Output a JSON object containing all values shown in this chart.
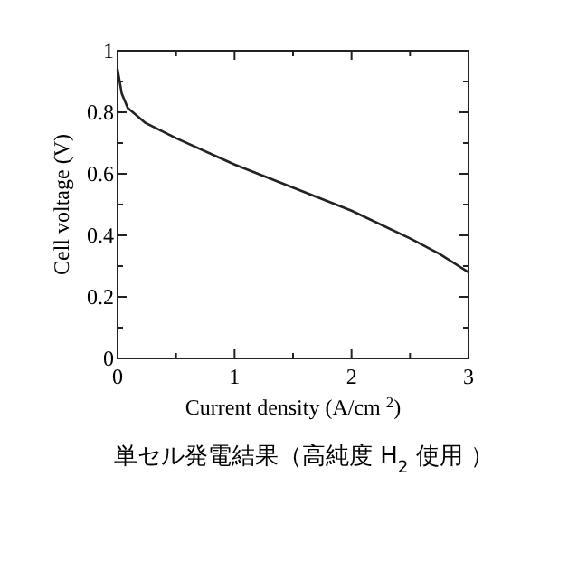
{
  "chart_data": {
    "type": "line",
    "xlabel": "Current density (A/cm $^{2}$)",
    "ylabel": "Cell voltage (V)",
    "annotations": [
      "単セル発電結果（高純度 H$_{2}$ 使用 ）"
    ],
    "x": [
      0,
      0.036,
      0.087,
      0.24,
      0.5,
      1.0,
      1.5,
      2.0,
      2.5,
      2.75,
      3.0
    ],
    "series": [
      {
        "color": "#222222",
        "values": [
          0.94,
          0.86,
          0.814,
          0.765,
          0.716,
          0.63,
          0.555,
          0.48,
          0.39,
          0.34,
          0.28
        ]
      }
    ],
    "xlim": [
      0,
      3
    ],
    "ylim": [
      0,
      1
    ],
    "xticks": [
      0,
      {
        "value": 0.5,
        "label": null
      },
      1,
      {
        "value": 1.5,
        "label": null
      },
      2,
      {
        "value": 2.5,
        "label": null
      },
      3
    ],
    "yticks": [
      0,
      {
        "value": 0.1,
        "label": null
      },
      0.2,
      {
        "value": 0.3,
        "label": null
      },
      0.4,
      {
        "value": 0.5,
        "label": null
      },
      0.6,
      {
        "value": 0.7,
        "label": null
      },
      0.8,
      {
        "value": 0.9,
        "label": null
      },
      1
    ]
  }
}
